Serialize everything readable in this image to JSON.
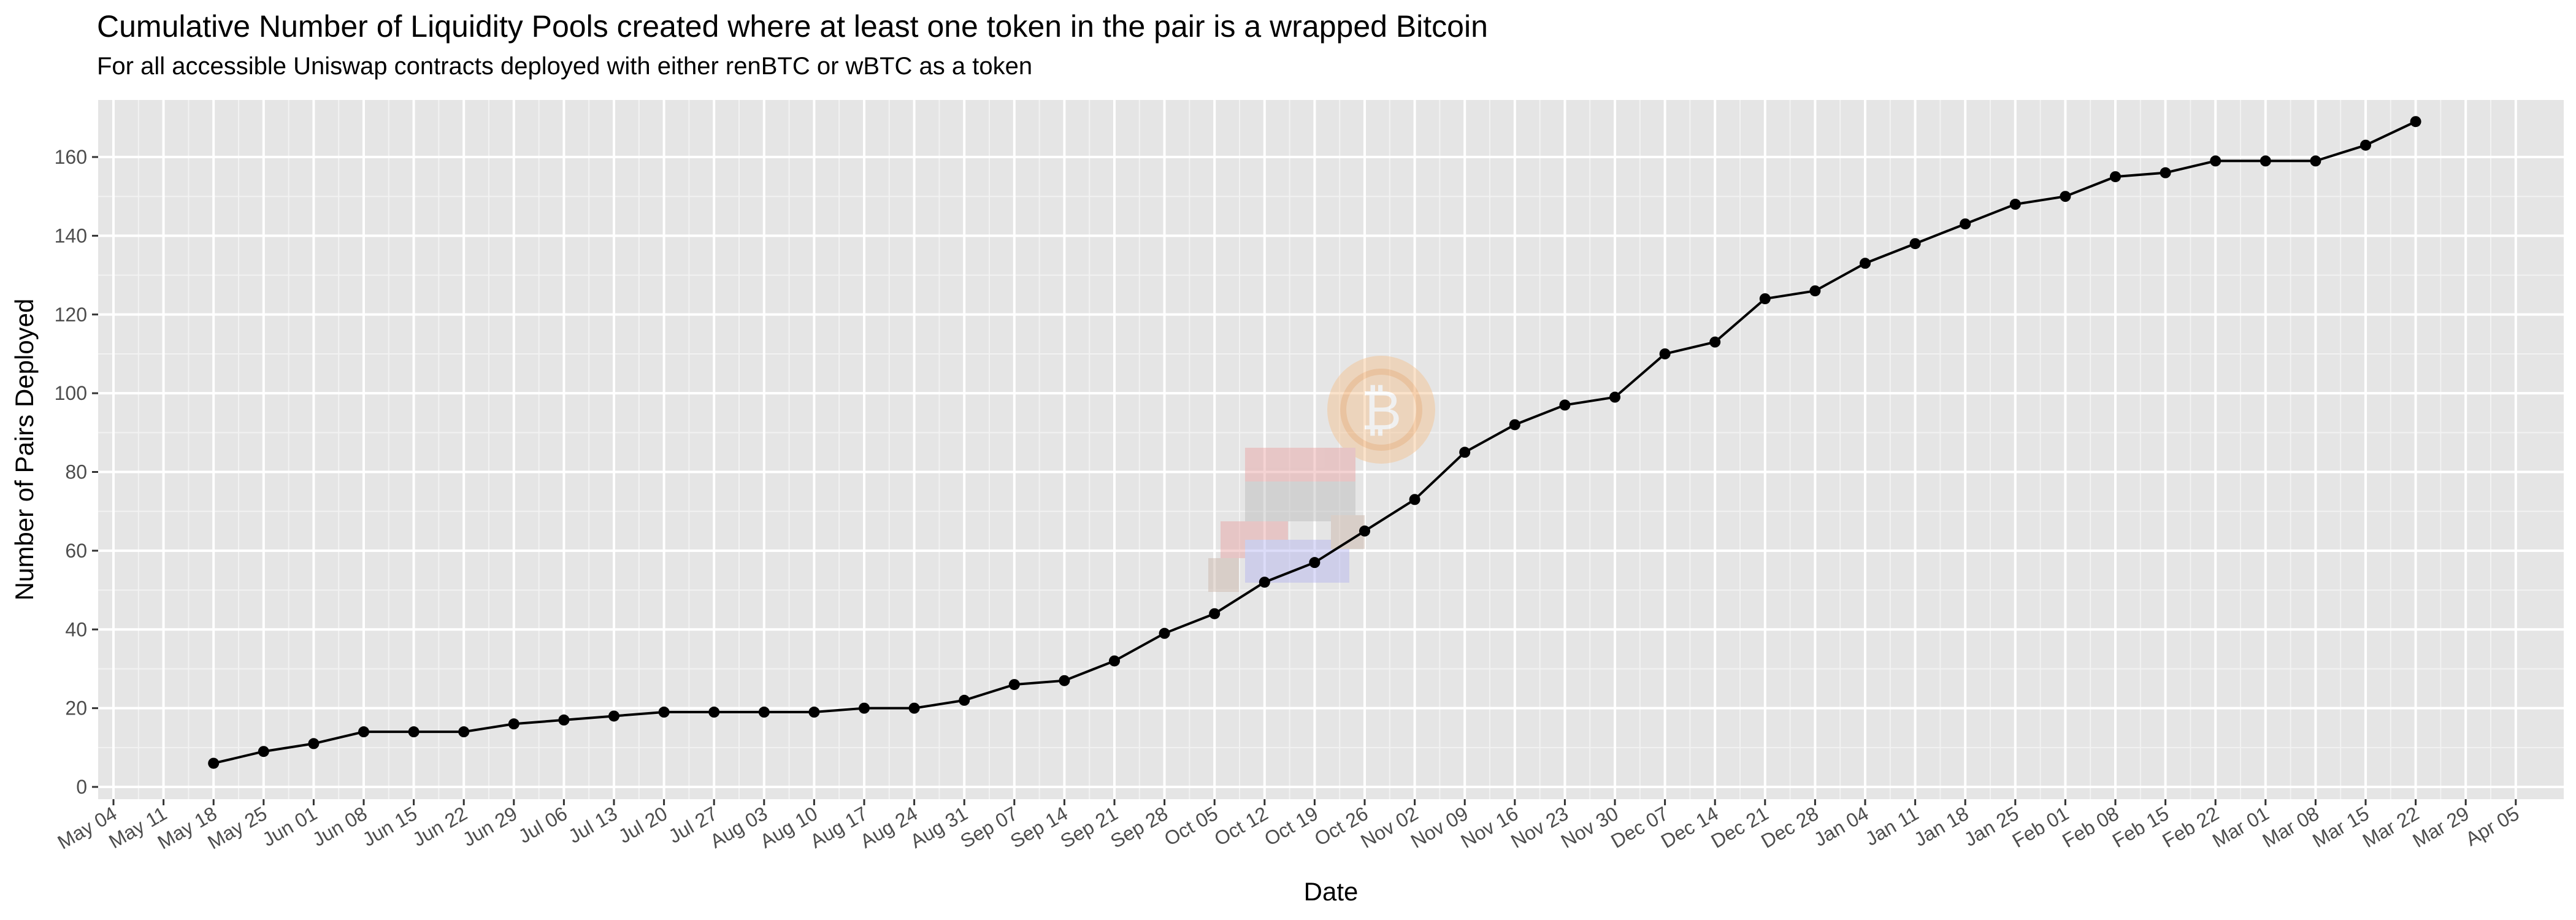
{
  "chart_data": {
    "type": "line",
    "title": "Cumulative Number of Liquidity Pools created where at least one token in the pair is a wrapped Bitcoin",
    "subtitle": "For all accessible Uniswap contracts deployed with either renBTC or wBTC as a token",
    "xlabel": "Date",
    "ylabel": "Number of Pairs Deployed",
    "x_tick_labels": [
      "May 04",
      "May 11",
      "May 18",
      "May 25",
      "Jun 01",
      "Jun 08",
      "Jun 15",
      "Jun 22",
      "Jun 29",
      "Jul 06",
      "Jul 13",
      "Jul 20",
      "Jul 27",
      "Aug 03",
      "Aug 10",
      "Aug 17",
      "Aug 24",
      "Aug 31",
      "Sep 07",
      "Sep 14",
      "Sep 21",
      "Sep 28",
      "Oct 05",
      "Oct 12",
      "Oct 19",
      "Oct 26",
      "Nov 02",
      "Nov 09",
      "Nov 16",
      "Nov 23",
      "Nov 30",
      "Dec 07",
      "Dec 14",
      "Dec 21",
      "Dec 28",
      "Jan 04",
      "Jan 11",
      "Jan 18",
      "Jan 25",
      "Feb 01",
      "Feb 08",
      "Feb 15",
      "Feb 22",
      "Mar 01",
      "Mar 08",
      "Mar 15",
      "Mar 22",
      "Mar 29",
      "Apr 05"
    ],
    "y_ticks": [
      0,
      20,
      40,
      60,
      80,
      100,
      120,
      140,
      160
    ],
    "ylim": [
      0,
      170
    ],
    "grid": true,
    "background": "#e5e5e5",
    "line_color": "#000000",
    "point_color": "#000000",
    "series": [
      {
        "x": [
          "May 18",
          "May 25",
          "Jun 01",
          "Jun 08",
          "Jun 15",
          "Jun 22",
          "Jun 29",
          "Jul 06",
          "Jul 13",
          "Jul 20",
          "Jul 27",
          "Aug 03",
          "Aug 10",
          "Aug 17",
          "Aug 24",
          "Aug 31",
          "Sep 07",
          "Sep 14",
          "Sep 21",
          "Sep 28",
          "Oct 05",
          "Oct 12",
          "Oct 19",
          "Oct 26",
          "Nov 02",
          "Nov 09",
          "Nov 16",
          "Nov 23",
          "Nov 30",
          "Dec 07",
          "Dec 14",
          "Dec 21",
          "Dec 28",
          "Jan 04",
          "Jan 11",
          "Jan 18",
          "Jan 25",
          "Feb 01",
          "Feb 08",
          "Feb 15",
          "Feb 22",
          "Mar 01",
          "Mar 08",
          "Mar 15",
          "Mar 22"
        ],
        "values": [
          6,
          9,
          11,
          14,
          14,
          14,
          16,
          17,
          18,
          19,
          19,
          19,
          19,
          20,
          20,
          22,
          26,
          27,
          32,
          39,
          44,
          52,
          57,
          65,
          73,
          85,
          92,
          97,
          99,
          110,
          113,
          124,
          126,
          133,
          138,
          143,
          148,
          150,
          155,
          156,
          159,
          159,
          159,
          163,
          169
        ]
      }
    ]
  }
}
